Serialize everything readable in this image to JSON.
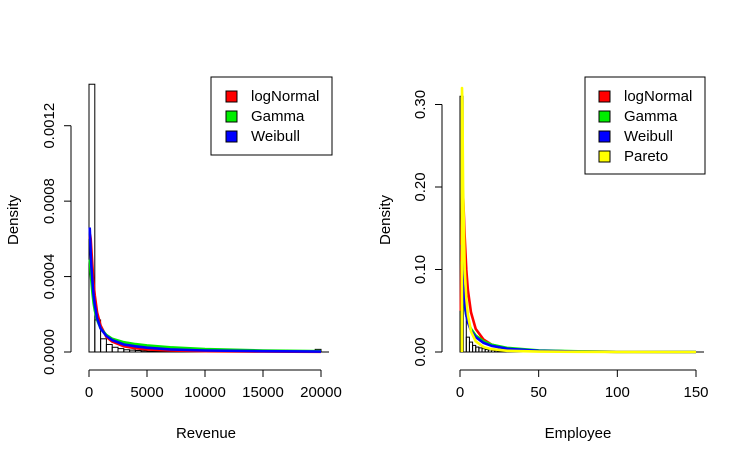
{
  "chart_data": [
    {
      "type": "histogram-with-density-fits",
      "xlabel": "Revenue",
      "ylabel": "Density",
      "xlim": [
        0,
        20000
      ],
      "ylim": [
        0,
        0.0014
      ],
      "xticks": [
        0,
        5000,
        10000,
        15000,
        20000
      ],
      "xtick_labels": [
        "0",
        "5000",
        "10000",
        "15000",
        "20000"
      ],
      "yticks": [
        0,
        0.0004,
        0.0008,
        0.0012
      ],
      "ytick_labels": [
        "0.0000",
        "0.0004",
        "0.0008",
        "0.0012"
      ],
      "legend_position": "top-right",
      "histogram": {
        "bin_width": 500,
        "bins": [
          {
            "x0": 0,
            "x1": 500,
            "density": 0.00142
          },
          {
            "x0": 500,
            "x1": 1000,
            "density": 0.00017
          },
          {
            "x0": 1000,
            "x1": 1500,
            "density": 7e-05
          },
          {
            "x0": 1500,
            "x1": 2000,
            "density": 4e-05
          },
          {
            "x0": 2000,
            "x1": 2500,
            "density": 2.5e-05
          },
          {
            "x0": 2500,
            "x1": 3000,
            "density": 1.8e-05
          },
          {
            "x0": 3000,
            "x1": 3500,
            "density": 1.2e-05
          },
          {
            "x0": 3500,
            "x1": 4000,
            "density": 1e-05
          },
          {
            "x0": 4000,
            "x1": 4500,
            "density": 8e-06
          },
          {
            "x0": 4500,
            "x1": 5000,
            "density": 6e-06
          },
          {
            "x0": 5000,
            "x1": 5500,
            "density": 4e-06
          },
          {
            "x0": 5500,
            "x1": 6000,
            "density": 3e-06
          },
          {
            "x0": 6000,
            "x1": 6500,
            "density": 3e-06
          },
          {
            "x0": 12500,
            "x1": 13000,
            "density": 4e-06
          },
          {
            "x0": 18500,
            "x1": 19000,
            "density": 8e-06
          },
          {
            "x0": 19500,
            "x1": 20000,
            "density": 1.4e-05
          }
        ]
      },
      "series": [
        {
          "name": "logNormal",
          "color": "#ff0000",
          "x": [
            80,
            100,
            150,
            200,
            300,
            400,
            500,
            700,
            1000,
            1500,
            2000,
            3000,
            4000,
            5000,
            7000,
            10000,
            15000,
            20000
          ],
          "y": [
            0.0006,
            0.00062,
            0.0006,
            0.00055,
            0.00045,
            0.00036,
            0.0003,
            0.00021,
            0.00014,
            8e-05,
            5.5e-05,
            3e-05,
            2e-05,
            1.4e-05,
            8e-06,
            4e-06,
            2e-06,
            1e-06
          ]
        },
        {
          "name": "Gamma",
          "color": "#00ee00",
          "x": [
            60,
            100,
            150,
            200,
            300,
            400,
            500,
            700,
            1000,
            1500,
            2000,
            3000,
            4000,
            5000,
            7000,
            10000,
            15000,
            20000
          ],
          "y": [
            0.00049,
            0.00047,
            0.00042,
            0.00038,
            0.00031,
            0.00026,
            0.00022,
            0.00017,
            0.000125,
            9e-05,
            7e-05,
            5.2e-05,
            4.2e-05,
            3.5e-05,
            2.5e-05,
            1.6e-05,
            8e-06,
            4e-06
          ]
        },
        {
          "name": "Weibull",
          "color": "#0000ff",
          "x": [
            60,
            100,
            150,
            200,
            300,
            400,
            500,
            700,
            1000,
            1500,
            2000,
            3000,
            4000,
            5000,
            7000,
            10000,
            15000,
            20000
          ],
          "y": [
            0.00066,
            0.0006,
            0.00053,
            0.00046,
            0.00037,
            0.0003,
            0.00025,
            0.00018,
            0.000125,
            8.5e-05,
            6.3e-05,
            4e-05,
            3e-05,
            2.3e-05,
            1.4e-05,
            8e-06,
            4e-06,
            2e-06
          ]
        }
      ]
    },
    {
      "type": "histogram-with-density-fits",
      "xlabel": "Employee",
      "ylabel": "Density",
      "xlim": [
        0,
        150
      ],
      "ylim": [
        0,
        0.32
      ],
      "xticks": [
        0,
        50,
        100,
        150
      ],
      "xtick_labels": [
        "0",
        "50",
        "100",
        "150"
      ],
      "yticks": [
        0,
        0.1,
        0.2,
        0.3
      ],
      "ytick_labels": [
        "0.00",
        "0.10",
        "0.20",
        "0.30"
      ],
      "legend_position": "top-right",
      "histogram": {
        "bin_width": 2,
        "bins": [
          {
            "x0": 0,
            "x1": 2,
            "density": 0.31
          },
          {
            "x0": 2,
            "x1": 4,
            "density": 0.055
          },
          {
            "x0": 4,
            "x1": 6,
            "density": 0.018
          },
          {
            "x0": 6,
            "x1": 8,
            "density": 0.012
          },
          {
            "x0": 8,
            "x1": 10,
            "density": 0.008
          },
          {
            "x0": 10,
            "x1": 12,
            "density": 0.006
          },
          {
            "x0": 12,
            "x1": 14,
            "density": 0.005
          },
          {
            "x0": 14,
            "x1": 16,
            "density": 0.004
          },
          {
            "x0": 16,
            "x1": 18,
            "density": 0.003
          },
          {
            "x0": 18,
            "x1": 20,
            "density": 0.0025
          },
          {
            "x0": 20,
            "x1": 22,
            "density": 0.002
          },
          {
            "x0": 22,
            "x1": 24,
            "density": 0.0015
          },
          {
            "x0": 24,
            "x1": 26,
            "density": 0.001
          },
          {
            "x0": 26,
            "x1": 28,
            "density": 0.001
          }
        ]
      },
      "series": [
        {
          "name": "logNormal",
          "color": "#ff0000",
          "x": [
            0.5,
            1,
            1.5,
            2,
            3,
            4,
            5,
            7,
            10,
            15,
            20,
            30,
            50,
            75,
            100,
            150
          ],
          "y": [
            0.05,
            0.15,
            0.2,
            0.19,
            0.14,
            0.1,
            0.075,
            0.048,
            0.028,
            0.015,
            0.009,
            0.004,
            0.0015,
            0.0006,
            0.0003,
            0.0001
          ]
        },
        {
          "name": "Gamma",
          "color": "#00ee00",
          "x": [
            1,
            1.5,
            2,
            3,
            4,
            5,
            7,
            10,
            15,
            20,
            30,
            50,
            75,
            100,
            150
          ],
          "y": [
            0.11,
            0.088,
            0.073,
            0.055,
            0.044,
            0.037,
            0.028,
            0.02,
            0.013,
            0.009,
            0.005,
            0.002,
            0.0008,
            0.0003,
            0.0001
          ]
        },
        {
          "name": "Weibull",
          "color": "#0000ff",
          "x": [
            1,
            1.5,
            2,
            3,
            4,
            5,
            7,
            10,
            15,
            20,
            30,
            50,
            75,
            100,
            150
          ],
          "y": [
            0.13,
            0.1,
            0.08,
            0.058,
            0.045,
            0.036,
            0.026,
            0.018,
            0.011,
            0.0075,
            0.004,
            0.0015,
            0.0006,
            0.0002,
            5e-05
          ]
        },
        {
          "name": "Pareto",
          "color": "#ffff00",
          "x": [
            1.2,
            1.3,
            1.5,
            2,
            3,
            4,
            5,
            7,
            10,
            15,
            20,
            30,
            50,
            75,
            100,
            150
          ],
          "y": [
            0.0,
            0.32,
            0.3,
            0.2,
            0.1,
            0.065,
            0.045,
            0.025,
            0.013,
            0.006,
            0.0035,
            0.0015,
            0.0005,
            0.0002,
            0.0001,
            4e-05
          ]
        }
      ]
    }
  ]
}
